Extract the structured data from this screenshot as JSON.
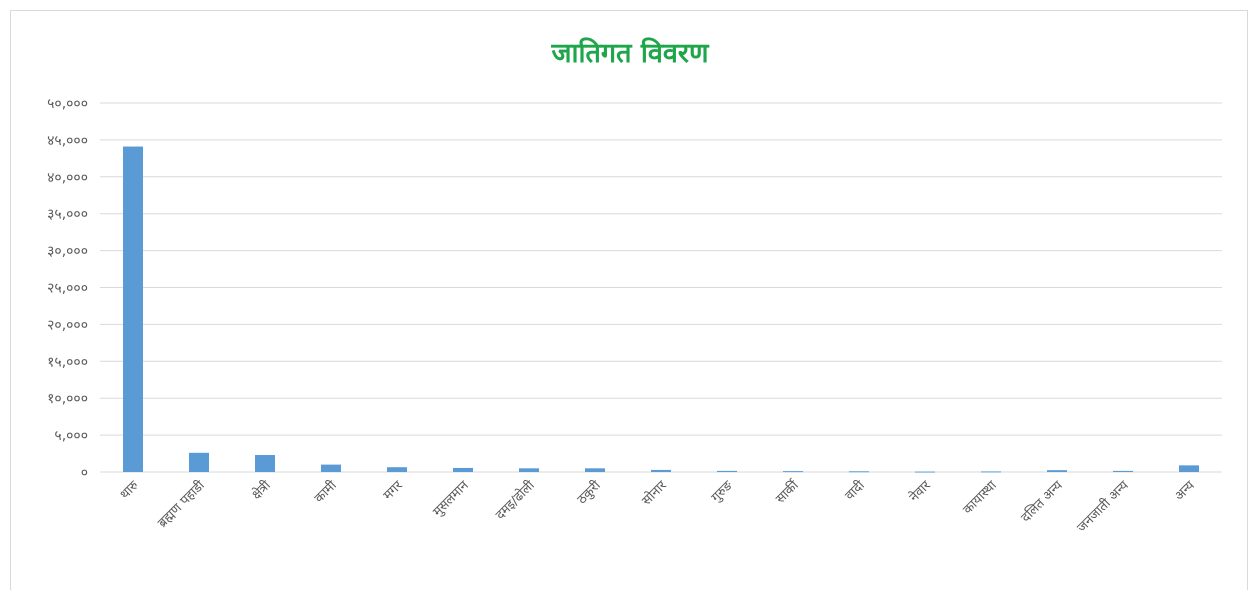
{
  "chart_data": {
    "type": "bar",
    "title": "जातिगत विवरण",
    "categories": [
      "थारु",
      "ब्रह्मण पहाडी",
      "क्षेत्री",
      "कामी",
      "मगर",
      "मुसलमान",
      "दमइ/ढोली",
      "ठकुरी",
      "सोनार",
      "गुरुङ",
      "सार्की",
      "वादी",
      "नेवार",
      "कायास्था",
      "दलित अन्य",
      "जनजाती अन्य",
      "अन्य"
    ],
    "values": [
      44100,
      2600,
      2300,
      1000,
      650,
      550,
      500,
      500,
      280,
      150,
      120,
      100,
      60,
      80,
      250,
      150,
      900
    ],
    "ylim": [
      0,
      50000
    ],
    "yticks": [
      0,
      5000,
      10000,
      15000,
      20000,
      25000,
      30000,
      35000,
      40000,
      45000,
      50000
    ],
    "ytick_labels": [
      "०",
      "५,०००",
      "१०,०००",
      "१५,०००",
      "२०,०००",
      "२५,०००",
      "३०,०००",
      "३५,०००",
      "४०,०००",
      "४५,०००",
      "५०,०००"
    ],
    "grid": true,
    "legend": "none",
    "bar_color": "#5b9bd5"
  }
}
